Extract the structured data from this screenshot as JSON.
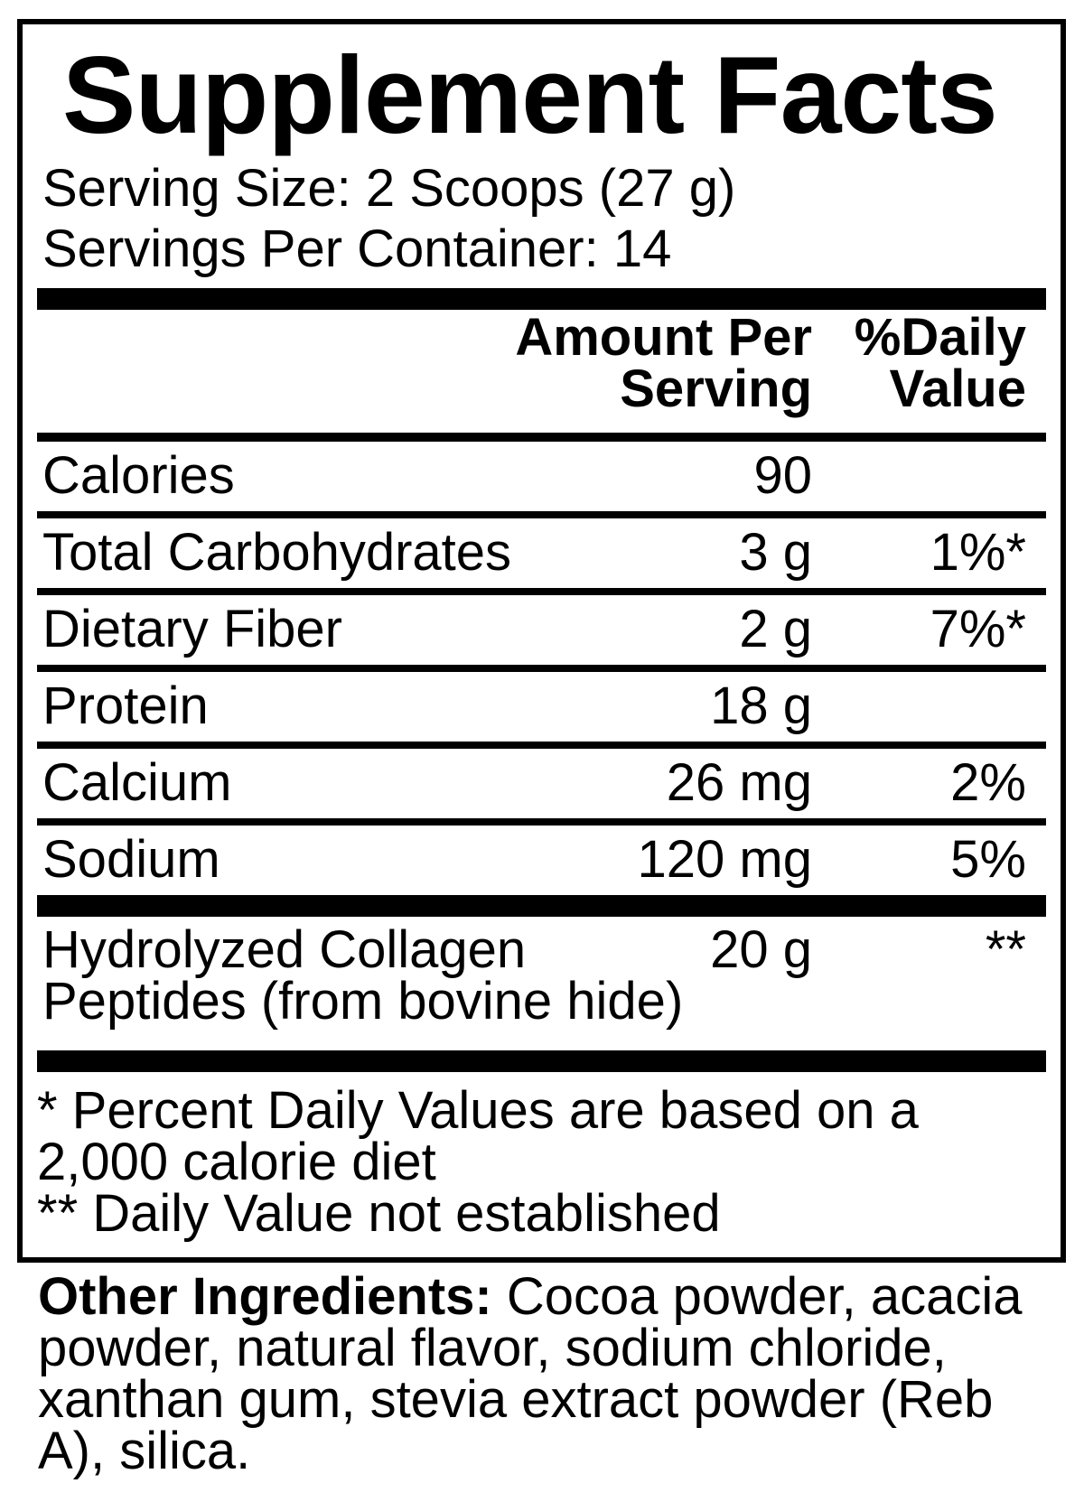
{
  "title": "Supplement Facts",
  "serving_info": {
    "serving_size": "Serving Size: 2 Scoops (27 g)",
    "servings_per_container": "Servings Per Container: 14"
  },
  "table": {
    "columns": {
      "amount_line1": "Amount Per",
      "amount_line2": "Serving",
      "dv_line1": "%Daily",
      "dv_line2": "Value"
    },
    "rows": [
      {
        "name": "Calories",
        "amount": "90",
        "dv": ""
      },
      {
        "name": "Total Carbohydrates",
        "amount": "3 g",
        "dv": "1%*"
      },
      {
        "name": "Dietary Fiber",
        "amount": "2 g",
        "dv": "7%*"
      },
      {
        "name": "Protein",
        "amount": "18 g",
        "dv": ""
      },
      {
        "name": "Calcium",
        "amount": "26 mg",
        "dv": "2%"
      },
      {
        "name": "Sodium",
        "amount": "120 mg",
        "dv": "5%"
      }
    ],
    "extra_row": {
      "name_line1": "Hydrolyzed Collagen",
      "name_line2": "Peptides (from bovine hide)",
      "amount": "20 g",
      "dv": "**"
    }
  },
  "footnotes": {
    "line1": "* Percent Daily Values are based on a",
    "line2": "2,000 calorie diet",
    "line3": "** Daily Value not established"
  },
  "other_ingredients": {
    "label": "Other Ingredients:",
    "line1_rest": " Cocoa powder, acacia",
    "line2": "powder, natural flavor, sodium chloride,",
    "line3": "xanthan gum, stevia extract powder (Reb",
    "line4": "A), silica."
  },
  "colors": {
    "text": "#000000",
    "background": "#ffffff",
    "bar": "#000000"
  }
}
